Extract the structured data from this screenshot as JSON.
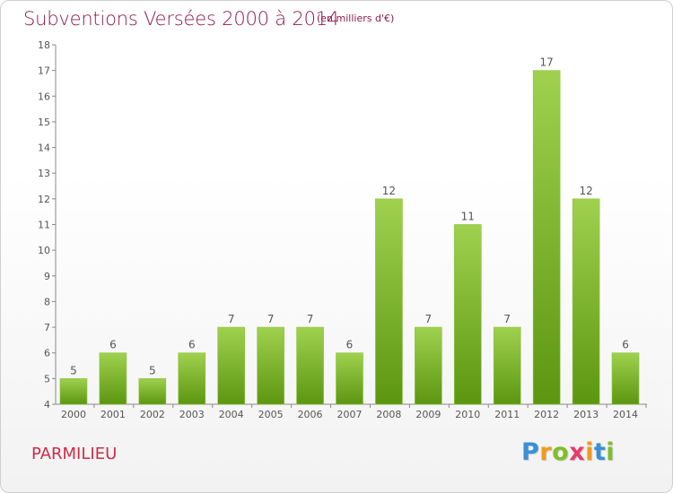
{
  "title": "Subventions Versées 2000 à 2014",
  "subtitle": "(en milliers d'€)",
  "commune": "PARMILIEU",
  "logo": {
    "letters": [
      "P",
      "r",
      "o",
      "x",
      "i",
      "t",
      "i"
    ],
    "colors": [
      "#3a8fd6",
      "#f29a1f",
      "#7fbf2a",
      "#e83b6c",
      "#f29a1f",
      "#3a8fd6",
      "#7fbf2a"
    ]
  },
  "colors": {
    "bar_top": "#9fd14f",
    "bar_bottom": "#5c9610",
    "title": "#8c1a4a"
  },
  "chart_data": {
    "type": "bar",
    "categories": [
      "2000",
      "2001",
      "2002",
      "2003",
      "2004",
      "2005",
      "2006",
      "2007",
      "2008",
      "2009",
      "2010",
      "2011",
      "2012",
      "2013",
      "2014"
    ],
    "values": [
      5,
      6,
      5,
      6,
      7,
      7,
      7,
      6,
      12,
      7,
      11,
      7,
      17,
      12,
      6
    ],
    "ylim": [
      4,
      18
    ],
    "yticks": [
      4,
      5,
      6,
      7,
      8,
      9,
      10,
      11,
      12,
      13,
      14,
      15,
      16,
      17,
      18
    ],
    "grid": false,
    "legend": "none"
  }
}
